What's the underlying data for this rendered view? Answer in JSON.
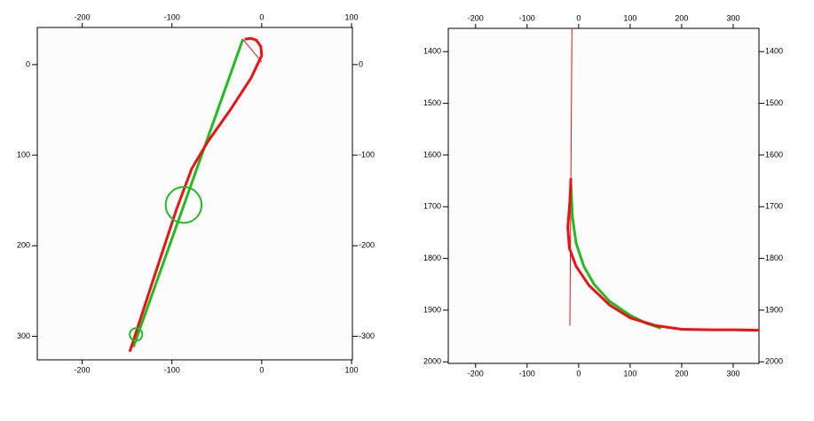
{
  "chart_data": [
    {
      "type": "line",
      "xlim": [
        -250,
        101
      ],
      "xticks": [
        -200,
        -100,
        0,
        100
      ],
      "ylim": [
        -41,
        326
      ],
      "yticks": [
        0,
        100,
        200,
        300
      ],
      "y_inverted": true,
      "y2lim": [
        -326,
        41
      ],
      "y2ticks": [
        0,
        -100,
        -200,
        -300
      ],
      "y2_inverted": false,
      "series": [
        {
          "color": "#22bb22",
          "line_width": 3,
          "x": [
            -143,
            -21
          ],
          "values": [
            312,
            -28
          ]
        },
        {
          "color": "#ee1111",
          "line_width": 3,
          "x": [
            -147,
            -120,
            -95,
            -78,
            -60,
            -35,
            -12,
            0,
            -1,
            -6,
            -12,
            -19
          ],
          "values": [
            317,
            235,
            160,
            115,
            85,
            50,
            15,
            -10,
            -20,
            -27,
            -29,
            -28
          ]
        },
        {
          "color": "#ee1111",
          "line_width": 1,
          "x": [
            -21,
            0
          ],
          "values": [
            -28,
            -3
          ]
        }
      ],
      "circles": [
        {
          "x": -140,
          "y": 298,
          "r": 7,
          "color": "#22bb22"
        },
        {
          "x": -87,
          "y": 155,
          "r": 20,
          "color": "#22bb22"
        }
      ]
    },
    {
      "type": "line",
      "xlim": [
        -253,
        350
      ],
      "xticks": [
        -200,
        -100,
        0,
        100,
        200,
        300
      ],
      "ylim": [
        1355,
        2003
      ],
      "yticks": [
        1400,
        1500,
        1600,
        1700,
        1800,
        1900,
        2000
      ],
      "y_inverted": true,
      "y2lim": [
        1355,
        2003
      ],
      "y2ticks": [
        1400,
        1500,
        1600,
        1700,
        1800,
        1900,
        2000
      ],
      "y2_inverted": true,
      "series": [
        {
          "color": "#ee1111",
          "line_width": 1,
          "x": [
            -13,
            -15,
            -17
          ],
          "values": [
            1355,
            1650,
            1930
          ]
        },
        {
          "color": "#22bb22",
          "line_width": 3,
          "x": [
            -15,
            -12,
            -5,
            10,
            30,
            60,
            100,
            130,
            160
          ],
          "values": [
            1655,
            1720,
            1770,
            1815,
            1850,
            1883,
            1910,
            1925,
            1935
          ]
        },
        {
          "color": "#ee1111",
          "line_width": 3,
          "x": [
            -15,
            -17,
            -21,
            -18,
            -5,
            20,
            60,
            100,
            150,
            200,
            260,
            300,
            350
          ],
          "values": [
            1645,
            1690,
            1740,
            1780,
            1815,
            1852,
            1890,
            1915,
            1930,
            1937,
            1938,
            1938,
            1939
          ]
        }
      ],
      "circles": []
    }
  ]
}
